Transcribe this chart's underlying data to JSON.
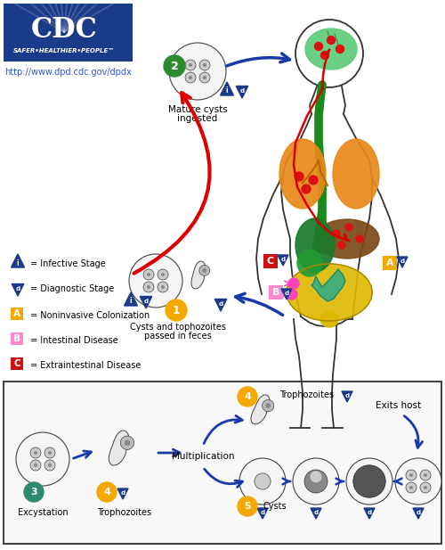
{
  "background_color": "#ffffff",
  "cdc_box_color": "#1a3a8a",
  "cdc_text": "CDC",
  "cdc_subtitle": "SAFER•HEALTHIER•PEOPLE™",
  "cdc_url": "http://www.dpd.cdc.gov/dpdx",
  "fig_width": 5.0,
  "fig_height": 6.17,
  "dpi": 100
}
